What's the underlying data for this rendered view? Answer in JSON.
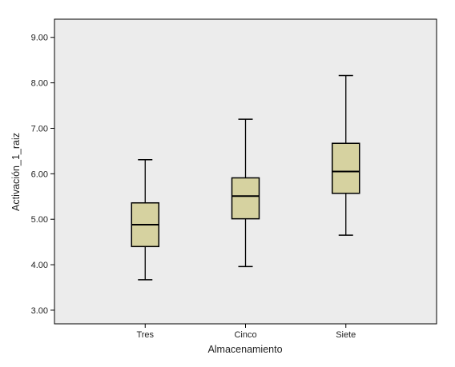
{
  "chart_data": {
    "type": "boxplot",
    "title": "",
    "xlabel": "Almacenamiento",
    "ylabel": "Activación_1_raiz",
    "ylim": [
      2.7,
      9.4
    ],
    "yticks": [
      3,
      4,
      5,
      6,
      7,
      8,
      9
    ],
    "ytick_labels": [
      "3.00",
      "4.00",
      "5.00",
      "6.00",
      "7.00",
      "8.00",
      "9.00"
    ],
    "categories": [
      "Tres",
      "Cinco",
      "Siete"
    ],
    "boxes": [
      {
        "category": "Tres",
        "min": 3.67,
        "q1": 4.4,
        "median": 4.88,
        "q3": 5.36,
        "max": 6.31
      },
      {
        "category": "Cinco",
        "min": 3.96,
        "q1": 5.01,
        "median": 5.51,
        "q3": 5.91,
        "max": 7.2
      },
      {
        "category": "Siete",
        "min": 4.65,
        "q1": 5.57,
        "median": 6.05,
        "q3": 6.67,
        "max": 8.16
      }
    ],
    "grid": false,
    "colors": {
      "plot_background": "#ececec",
      "box_fill": "#d6d2a0",
      "stroke": "#000000"
    }
  }
}
